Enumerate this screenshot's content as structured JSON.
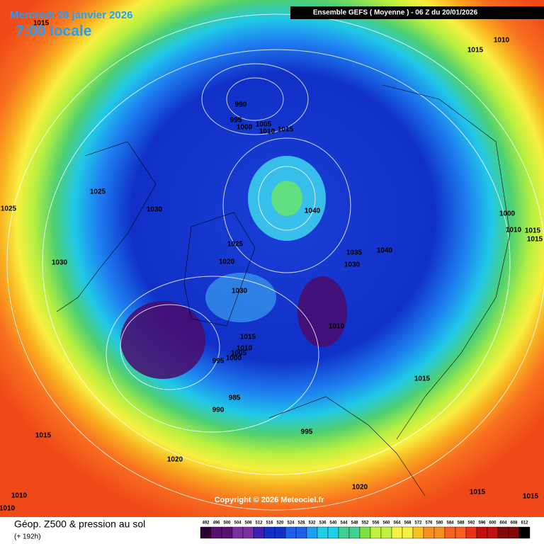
{
  "header": {
    "date": "Mercredi 28 janvier 2026",
    "time": "7:00 locale",
    "model": "Ensemble GEFS  ( Moyenne )  -  06 Z du 20/01/2026"
  },
  "isobar_labels": [
    "1015",
    "1010",
    "1015",
    "990",
    "995",
    "1000",
    "1005",
    "1010",
    "1015",
    "1025",
    "1025",
    "1030",
    "1040",
    "1000",
    "1015",
    "1015",
    "1010",
    "1025",
    "1035",
    "1040",
    "1030",
    "1020",
    "1030",
    "1030",
    "1010",
    "1015",
    "1010",
    "1005",
    "1000",
    "995",
    "1015",
    "985",
    "990",
    "995",
    "1015",
    "1020",
    "1010",
    "1010",
    "1020",
    "1015",
    "1015"
  ],
  "footer": {
    "copyright": "Copyright © 2026 Meteociel.fr",
    "title": "Géop. Z500 & pression au sol",
    "lead": "(+ 192h)"
  },
  "scale": [
    "492",
    "496",
    "500",
    "504",
    "508",
    "512",
    "516",
    "520",
    "524",
    "528",
    "532",
    "536",
    "540",
    "544",
    "548",
    "552",
    "556",
    "560",
    "564",
    "568",
    "572",
    "576",
    "580",
    "584",
    "588",
    "592",
    "596",
    "600",
    "604",
    "608",
    "612"
  ]
}
